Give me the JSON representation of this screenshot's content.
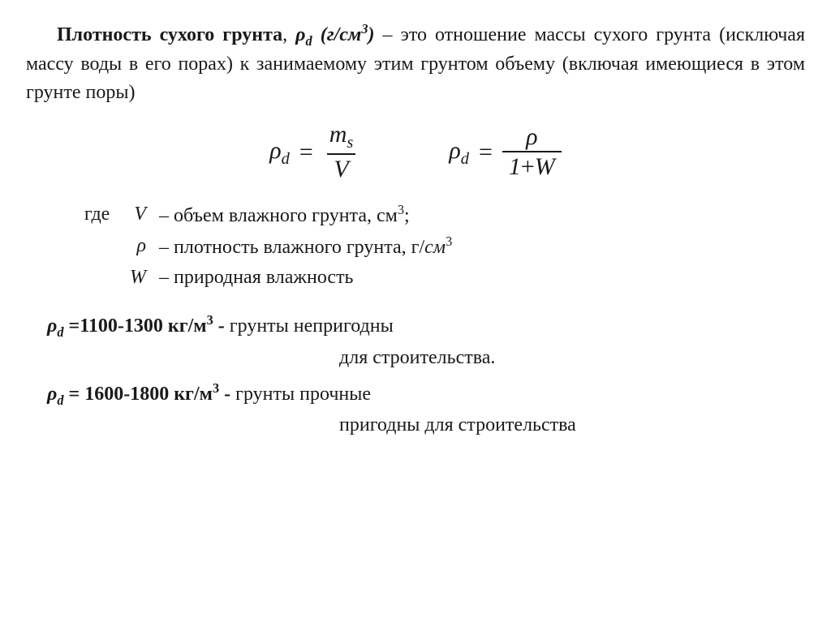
{
  "intro": {
    "lead_bold": "Плотность сухого грунта",
    "symbol_pre": ", ",
    "symbol": "ρ",
    "symbol_sub": "d",
    "unit_open": " (г/см",
    "unit_exp": "3",
    "unit_close": ")",
    "dash": "   – ",
    "body": "это отношение массы  сухого  грунта (исключая  массу воды в его порах) к занимаемому этим грунтом объему  (включая имеющи­еся в этом грунте поры)"
  },
  "eq": {
    "lhs": "ρ",
    "lhs_sub": "d",
    "equals": "=",
    "f1_num": "m",
    "f1_num_sub": "s",
    "f1_den": "V",
    "f2_num": "ρ",
    "f2_den_a": "1",
    "f2_plus": "+",
    "f2_den_b": "W"
  },
  "where_label": "где",
  "where": [
    {
      "sym": "V",
      "dash": "–",
      "def_a": "объем влажного грунта, см",
      "def_exp": "3",
      "def_b": ";"
    },
    {
      "sym": "ρ",
      "dash": "–",
      "def_a": "плотность влажного грунта, г/",
      "def_unit_ital": "см",
      "def_exp": "3",
      "def_b": ""
    },
    {
      "sym": "W",
      "dash": "–",
      "def_a": "природная влажность",
      "def_exp": "",
      "def_b": ""
    }
  ],
  "ranges": [
    {
      "sym": "ρ",
      "sym_sub": "d",
      "eqsign": " =",
      "value": "1100-1300 кг/м",
      "exp": "3",
      "dash": " - ",
      "desc": "грунты непригодны",
      "sub": "для  строительства."
    },
    {
      "sym": "ρ",
      "sym_sub": "d",
      "eqsign": " = ",
      "value": "1600-1800 кг/м",
      "exp": "3",
      "dash": " - ",
      "desc": "грунты прочные",
      "sub": "пригодны для строительства"
    }
  ]
}
